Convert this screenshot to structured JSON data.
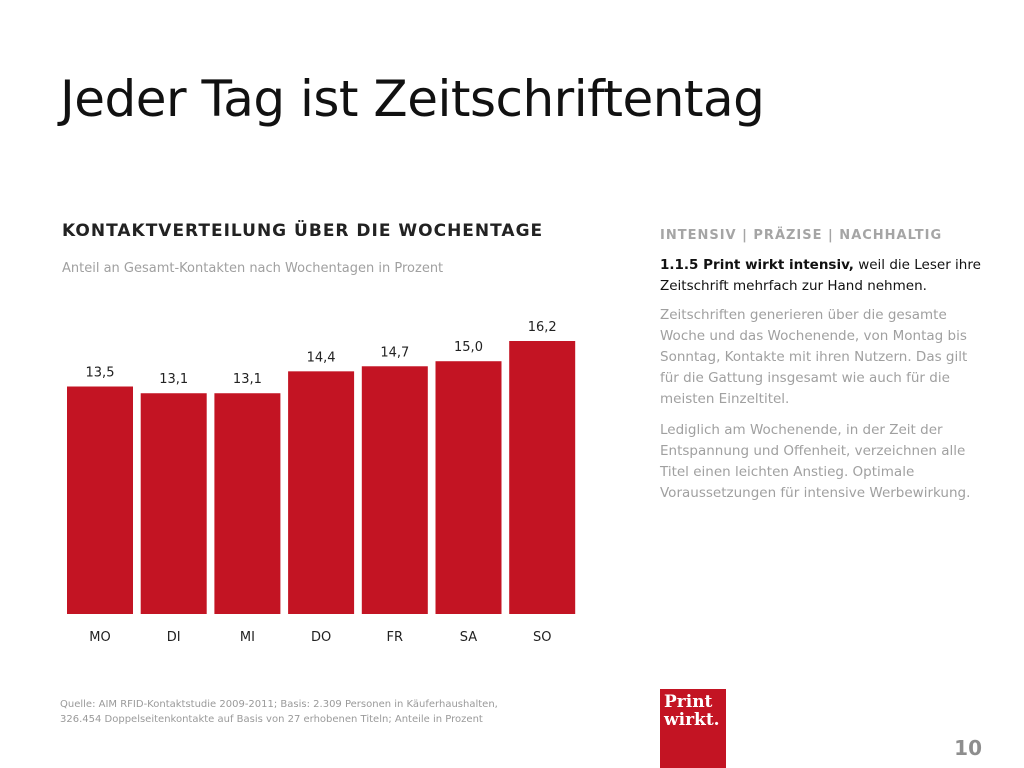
{
  "slide": {
    "title": "Jeder Tag ist Zeitschriftentag",
    "page_number": "10",
    "source_note_line1": "Quelle: AIM RFID-Kontaktstudie 2009-2011; Basis: 2.309 Personen in Käuferhaushalten,",
    "source_note_line2": "326.454 Doppelseitenkontakte auf Basis von 27 erhobenen Titeln; Anteile in Prozent",
    "logo_line1": "Print",
    "logo_line2": "wirkt."
  },
  "side_panel": {
    "heading": "INTENSIV | PRÄZISE | NACHHALTIG",
    "lead_strong": "1.1.5 Print wirkt intensiv,",
    "lead_rest": " weil die Leser ihre Zeitschrift mehrfach zur Hand nehmen.",
    "paragraph1": "Zeitschriften generieren über die gesamte Woche und das Wochenende, von Montag bis Sonntag, Kontakte mit ihren Nutzern. Das gilt für die Gattung insgesamt wie auch für die meisten Einzeltitel.",
    "paragraph2": "Lediglich am Wochenende, in der Zeit der Entspannung und Offenheit, verzeichnen alle Titel einen leichten Anstieg. Optimale Voraussetzungen für intensive Werbewirkung."
  },
  "chart_data": {
    "type": "bar",
    "title": "KONTAKTVERTEILUNG ÜBER DIE WOCHENTAGE",
    "subtitle": "Anteil an Gesamt-Kontakten nach Wochentagen in Prozent",
    "categories": [
      "MO",
      "DI",
      "MI",
      "DO",
      "FR",
      "SA",
      "SO"
    ],
    "values": [
      13.5,
      13.1,
      13.1,
      14.4,
      14.7,
      15.0,
      16.2
    ],
    "value_labels": [
      "13,5",
      "13,1",
      "13,1",
      "14,4",
      "14,7",
      "15,0",
      "16,2"
    ],
    "ylim": [
      0,
      16.2
    ],
    "grid": false,
    "bar_color": "#c31423"
  },
  "colors": {
    "accent": "#c31423",
    "muted_text": "#a0a0a0"
  }
}
